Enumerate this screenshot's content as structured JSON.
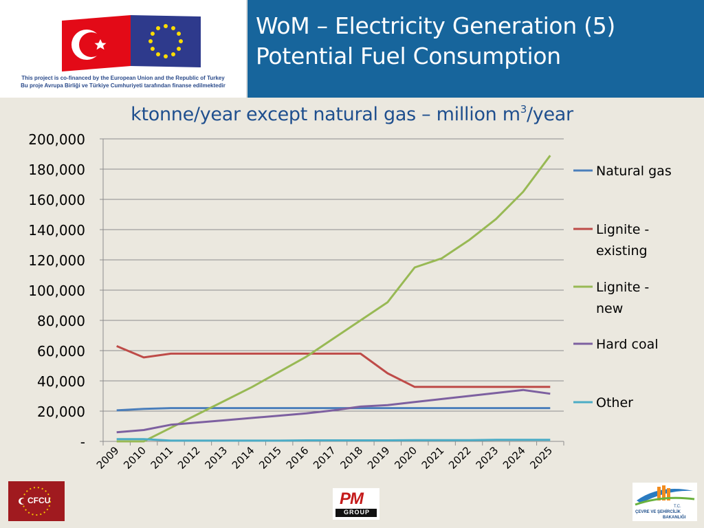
{
  "header": {
    "title_line1": "WoM – Electricity Generation (5)",
    "title_line2": "Potential Fuel Consumption",
    "eu_note_line1": "This project is co-financed by the European Union and the Republic of Turkey",
    "eu_note_line2": "Bu proje Avrupa Birliği ve Türkiye Cumhuriyeti tarafından finanse edilmektedir"
  },
  "subtitle": {
    "prefix": "ktonne/year except natural gas – million m",
    "superscript": "3",
    "suffix": "/year"
  },
  "logos": {
    "cfcu_text": "CFCU",
    "pm_text": "PM",
    "pm_sub": "GROUP",
    "ministry_line1": "T.C.",
    "ministry_line2": "ÇEVRE VE ŞEHİRCİLİK",
    "ministry_line3": "BAKANLIĞI"
  },
  "chart_data": {
    "type": "line",
    "title": "ktonne/year except natural gas – million m3/year",
    "categories": [
      "2009",
      "2010",
      "2011",
      "2012",
      "2013",
      "2014",
      "2015",
      "2016",
      "2017",
      "2018",
      "2019",
      "2020",
      "2021",
      "2022",
      "2023",
      "2024",
      "2025"
    ],
    "y_ticks": [
      "-",
      "20,000",
      "40,000",
      "60,000",
      "80,000",
      "100,000",
      "120,000",
      "140,000",
      "160,000",
      "180,000",
      "200,000"
    ],
    "ylim": [
      0,
      200000
    ],
    "grid": true,
    "legend_position": "right",
    "series": [
      {
        "name": "Natural gas",
        "color": "#4a7ebb",
        "values": [
          20500,
          21500,
          22000,
          22000,
          22000,
          22000,
          22000,
          22000,
          22000,
          22000,
          22000,
          22000,
          22000,
          22000,
          22000,
          22000,
          22000
        ]
      },
      {
        "name": "Lignite - existing",
        "color": "#be4b48",
        "values": [
          63000,
          55500,
          58000,
          58000,
          58000,
          58000,
          58000,
          58000,
          58000,
          58000,
          45000,
          36000,
          36000,
          36000,
          36000,
          36000,
          36000
        ]
      },
      {
        "name": "Lignite - new",
        "color": "#98b954",
        "values": [
          0,
          0,
          9000,
          18000,
          27000,
          36000,
          46000,
          56000,
          68000,
          80000,
          92000,
          115000,
          121000,
          133000,
          147000,
          165000,
          189000
        ]
      },
      {
        "name": "Hard coal",
        "color": "#7d60a0",
        "values": [
          6000,
          7500,
          11000,
          12500,
          14000,
          15500,
          17000,
          18500,
          20500,
          23000,
          24000,
          26000,
          28000,
          30000,
          32000,
          34000,
          31500
        ]
      },
      {
        "name": "Other",
        "color": "#4bacc6",
        "values": [
          1500,
          1500,
          500,
          500,
          500,
          500,
          500,
          700,
          700,
          700,
          700,
          800,
          800,
          800,
          1000,
          1000,
          1000
        ]
      }
    ],
    "legend_labels": [
      [
        "Natural gas"
      ],
      [
        "Lignite -",
        "existing"
      ],
      [
        "Lignite -",
        "new"
      ],
      [
        "Hard coal"
      ],
      [
        "Other"
      ]
    ]
  }
}
